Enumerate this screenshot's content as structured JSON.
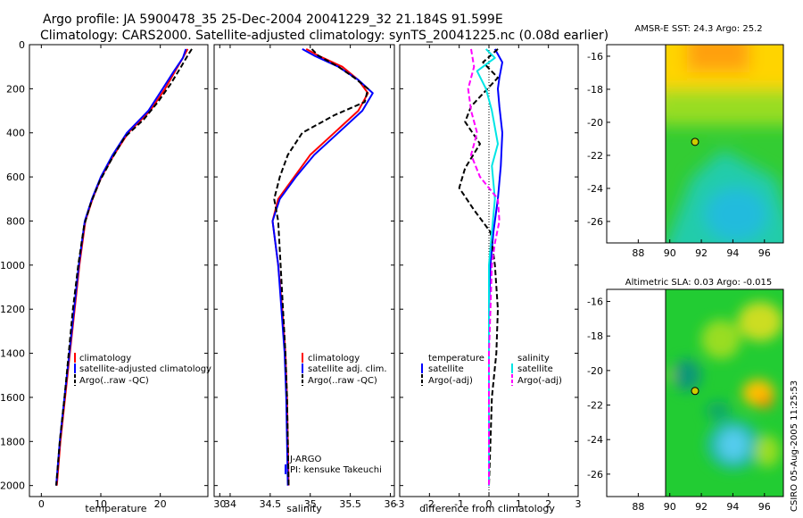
{
  "header": {
    "line1": "Argo profile: JA 5900478_35 25-Dec-2004 20041229_32 21.184S 91.599E",
    "line2": "Climatology: CARS2000. Satellite-adjusted climatology: synTS_20041225.nc (0.08d earlier)"
  },
  "side_text": "CSIRO 05-Aug-2005 11:25:53",
  "colors": {
    "clim": "#ff0000",
    "sat": "#0000ff",
    "argo": "#000000",
    "sal_sat": "#00e5e5",
    "sal_argo": "#ff00ff"
  },
  "chart_data": [
    {
      "type": "line",
      "id": "temperature",
      "xlabel": "temperature",
      "xlim": [
        -2,
        28
      ],
      "ylim": [
        2050,
        0
      ],
      "xticks": [
        "0",
        "10",
        "20",
        "30"
      ],
      "yticks": [
        "0",
        "200",
        "400",
        "600",
        "800",
        "1000",
        "1200",
        "1400",
        "1600",
        "1800",
        "2000"
      ],
      "legend": [
        "climatology",
        "satellite-adjusted climatology",
        "Argo(..raw -QC)"
      ],
      "series": [
        {
          "name": "climatology",
          "color": "#ff0000",
          "dash": "",
          "points": [
            [
              24.6,
              20
            ],
            [
              23.8,
              60
            ],
            [
              22.5,
              120
            ],
            [
              20.8,
              200
            ],
            [
              18.3,
              300
            ],
            [
              14.6,
              400
            ],
            [
              12.2,
              500
            ],
            [
              10.1,
              600
            ],
            [
              8.6,
              700
            ],
            [
              7.4,
              800
            ],
            [
              6.4,
              1000
            ],
            [
              5.6,
              1200
            ],
            [
              4.8,
              1400
            ],
            [
              4.0,
              1600
            ],
            [
              3.2,
              1800
            ],
            [
              2.6,
              2000
            ]
          ]
        },
        {
          "name": "satellite-adjusted",
          "color": "#0000ff",
          "dash": "",
          "points": [
            [
              24.3,
              20
            ],
            [
              23.8,
              60
            ],
            [
              22.3,
              120
            ],
            [
              20.4,
              200
            ],
            [
              18.0,
              300
            ],
            [
              14.4,
              400
            ],
            [
              12.0,
              500
            ],
            [
              10.0,
              600
            ],
            [
              8.5,
              700
            ],
            [
              7.3,
              800
            ],
            [
              6.3,
              1000
            ],
            [
              5.5,
              1200
            ],
            [
              4.7,
              1400
            ],
            [
              3.9,
              1600
            ],
            [
              3.1,
              1800
            ],
            [
              2.5,
              2000
            ]
          ]
        },
        {
          "name": "Argo",
          "color": "#000000",
          "dash": "6,3",
          "points": [
            [
              25.3,
              20
            ],
            [
              24.6,
              50
            ],
            [
              23.5,
              100
            ],
            [
              21.7,
              180
            ],
            [
              19.6,
              260
            ],
            [
              17.2,
              340
            ],
            [
              14.0,
              420
            ],
            [
              11.8,
              520
            ],
            [
              9.8,
              620
            ],
            [
              8.3,
              720
            ],
            [
              7.2,
              820
            ],
            [
              6.2,
              1000
            ],
            [
              5.3,
              1200
            ],
            [
              4.6,
              1400
            ],
            [
              3.9,
              1600
            ],
            [
              3.1,
              1800
            ],
            [
              2.5,
              2000
            ]
          ]
        }
      ]
    },
    {
      "type": "line",
      "id": "salinity",
      "xlabel": "salinity",
      "xlim": [
        33.8,
        36.05
      ],
      "ylim": [
        2050,
        0
      ],
      "xticks": [
        "34",
        "34.5",
        "35",
        "35.5",
        "36"
      ],
      "legend": [
        "climatology",
        "satellite adj. clim.",
        "Argo(..raw -QC)"
      ],
      "annotations": [
        "J-ARGO",
        "PI: kensuke Takeuchi"
      ],
      "series": [
        {
          "name": "climatology",
          "color": "#ff0000",
          "dash": "",
          "points": [
            [
              34.95,
              20
            ],
            [
              35.1,
              50
            ],
            [
              35.4,
              100
            ],
            [
              35.6,
              160
            ],
            [
              35.72,
              220
            ],
            [
              35.6,
              300
            ],
            [
              35.3,
              400
            ],
            [
              35.0,
              500
            ],
            [
              34.8,
              600
            ],
            [
              34.6,
              700
            ],
            [
              34.53,
              800
            ],
            [
              34.6,
              1000
            ],
            [
              34.65,
              1200
            ],
            [
              34.69,
              1400
            ],
            [
              34.71,
              1600
            ],
            [
              34.72,
              1800
            ],
            [
              34.73,
              2000
            ]
          ]
        },
        {
          "name": "satellite-adjusted",
          "color": "#0000ff",
          "dash": "",
          "points": [
            [
              34.9,
              20
            ],
            [
              35.05,
              50
            ],
            [
              35.35,
              100
            ],
            [
              35.6,
              160
            ],
            [
              35.78,
              220
            ],
            [
              35.65,
              300
            ],
            [
              35.35,
              400
            ],
            [
              35.05,
              500
            ],
            [
              34.82,
              600
            ],
            [
              34.62,
              700
            ],
            [
              34.53,
              800
            ],
            [
              34.6,
              1000
            ],
            [
              34.64,
              1200
            ],
            [
              34.68,
              1400
            ],
            [
              34.7,
              1600
            ],
            [
              34.71,
              1800
            ],
            [
              34.72,
              2000
            ]
          ]
        },
        {
          "name": "Argo",
          "color": "#000000",
          "dash": "6,3",
          "points": [
            [
              35.02,
              20
            ],
            [
              35.1,
              50
            ],
            [
              35.35,
              100
            ],
            [
              35.55,
              150
            ],
            [
              35.72,
              200
            ],
            [
              35.68,
              260
            ],
            [
              35.3,
              320
            ],
            [
              34.9,
              400
            ],
            [
              34.72,
              500
            ],
            [
              34.62,
              600
            ],
            [
              34.55,
              700
            ],
            [
              34.6,
              800
            ],
            [
              34.63,
              1000
            ],
            [
              34.66,
              1200
            ],
            [
              34.69,
              1400
            ],
            [
              34.71,
              1600
            ],
            [
              34.72,
              1800
            ],
            [
              34.73,
              2000
            ]
          ]
        }
      ]
    },
    {
      "type": "line",
      "id": "difference",
      "xlabel": "difference from climatology",
      "xlim": [
        -3,
        3
      ],
      "ylim": [
        2050,
        0
      ],
      "xticks": [
        "-3",
        "-2",
        "-1",
        "0",
        "1",
        "2",
        "3"
      ],
      "legend_left": [
        "temperature",
        "satellite",
        "Argo(-adj)"
      ],
      "legend_right": [
        "salinity",
        "satellite",
        "Argo(-adj)"
      ],
      "series": [
        {
          "name": "temp satellite",
          "color": "#0000ff",
          "dash": "",
          "points": [
            [
              0.2,
              20
            ],
            [
              0.45,
              80
            ],
            [
              0.35,
              150
            ],
            [
              0.3,
              200
            ],
            [
              0.35,
              280
            ],
            [
              0.45,
              400
            ],
            [
              0.4,
              550
            ],
            [
              0.3,
              700
            ],
            [
              0.15,
              850
            ],
            [
              0.05,
              1000
            ],
            [
              0.0,
              1200
            ],
            [
              0.0,
              1600
            ],
            [
              0.0,
              2000
            ]
          ]
        },
        {
          "name": "temp Argo",
          "color": "#000000",
          "dash": "6,3",
          "points": [
            [
              0.3,
              20
            ],
            [
              -0.2,
              80
            ],
            [
              0.3,
              150
            ],
            [
              -0.6,
              280
            ],
            [
              -0.8,
              350
            ],
            [
              -0.3,
              450
            ],
            [
              -0.8,
              560
            ],
            [
              -1.0,
              650
            ],
            [
              -0.5,
              750
            ],
            [
              0.05,
              850
            ],
            [
              0.2,
              1000
            ],
            [
              0.3,
              1200
            ],
            [
              0.25,
              1400
            ],
            [
              0.1,
              1600
            ],
            [
              0.05,
              1800
            ],
            [
              0.0,
              2000
            ]
          ]
        },
        {
          "name": "sal satellite",
          "color": "#00e5e5",
          "dash": "",
          "points": [
            [
              -0.1,
              20
            ],
            [
              0.2,
              60
            ],
            [
              -0.4,
              120
            ],
            [
              -0.1,
              200
            ],
            [
              0.1,
              300
            ],
            [
              0.3,
              450
            ],
            [
              0.1,
              550
            ],
            [
              0.2,
              700
            ],
            [
              0.1,
              850
            ],
            [
              0.0,
              1000
            ],
            [
              0.0,
              1400
            ],
            [
              0.0,
              2000
            ]
          ]
        },
        {
          "name": "sal Argo",
          "color": "#ff00ff",
          "dash": "6,3",
          "points": [
            [
              -0.6,
              20
            ],
            [
              -0.5,
              100
            ],
            [
              -0.7,
              200
            ],
            [
              -0.6,
              300
            ],
            [
              -0.4,
              400
            ],
            [
              -0.6,
              500
            ],
            [
              -0.3,
              600
            ],
            [
              0.3,
              700
            ],
            [
              0.35,
              800
            ],
            [
              0.2,
              900
            ],
            [
              0.1,
              1000
            ],
            [
              0.05,
              1200
            ],
            [
              0.0,
              1400
            ],
            [
              0.0,
              2000
            ]
          ]
        }
      ]
    },
    {
      "type": "heatmap",
      "id": "sst_map",
      "title": "AMSR-E SST: 24.3 Argo: 25.2",
      "xlim": [
        86,
        97.2
      ],
      "ylim": [
        -27.3,
        -15.3
      ],
      "xticks": [
        "88",
        "90",
        "92",
        "94",
        "96"
      ],
      "yticks": [
        "-16",
        "-18",
        "-20",
        "-22",
        "-24",
        "-26"
      ],
      "marker": {
        "lon": 91.599,
        "lat": -21.184
      }
    },
    {
      "type": "heatmap",
      "id": "sla_map",
      "title": "Altimetric SLA: 0.03 Argo: -0.015",
      "xlim": [
        86,
        97.2
      ],
      "ylim": [
        -27.3,
        -15.3
      ],
      "xticks": [
        "88",
        "90",
        "92",
        "94",
        "96"
      ],
      "yticks": [
        "-16",
        "-18",
        "-20",
        "-22",
        "-24",
        "-26"
      ],
      "marker": {
        "lon": 91.599,
        "lat": -21.184
      }
    }
  ]
}
